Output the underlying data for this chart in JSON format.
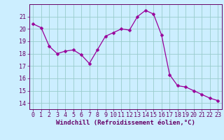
{
  "x": [
    0,
    1,
    2,
    3,
    4,
    5,
    6,
    7,
    8,
    9,
    10,
    11,
    12,
    13,
    14,
    15,
    16,
    17,
    18,
    19,
    20,
    21,
    22,
    23
  ],
  "y": [
    20.4,
    20.1,
    18.6,
    18.0,
    18.2,
    18.3,
    17.9,
    17.2,
    18.3,
    19.4,
    19.7,
    20.0,
    19.9,
    21.0,
    21.5,
    21.2,
    19.5,
    16.3,
    15.4,
    15.3,
    15.0,
    14.7,
    14.4,
    14.2
  ],
  "line_color": "#990099",
  "marker": "D",
  "marker_size": 2.5,
  "bg_color": "#cceeff",
  "grid_color": "#99cccc",
  "axis_color": "#660066",
  "tick_color": "#660066",
  "xlabel": "Windchill (Refroidissement éolien,°C)",
  "xlabel_fontsize": 6.5,
  "tick_fontsize": 6.0,
  "ylim": [
    13.5,
    22.0
  ],
  "xlim": [
    -0.5,
    23.5
  ],
  "yticks": [
    14,
    15,
    16,
    17,
    18,
    19,
    20,
    21
  ],
  "xticks": [
    0,
    1,
    2,
    3,
    4,
    5,
    6,
    7,
    8,
    9,
    10,
    11,
    12,
    13,
    14,
    15,
    16,
    17,
    18,
    19,
    20,
    21,
    22,
    23
  ]
}
